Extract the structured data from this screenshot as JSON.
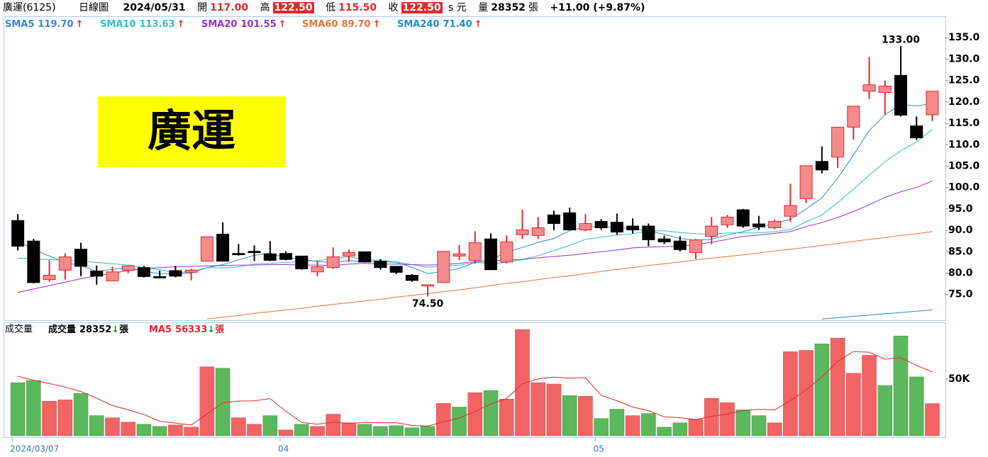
{
  "header": {
    "name": "廣運(6125)",
    "period": "日線圖",
    "date": "2024/05/31",
    "open_label": "開",
    "open": "117.00",
    "high_label": "高",
    "high": "122.50",
    "low_label": "低",
    "low": "115.50",
    "close_label": "收",
    "close": "122.50",
    "currency": "s 元",
    "volume_label": "量",
    "volume": "28352",
    "volume_unit": "張",
    "change": "+11.00 (+9.87%)"
  },
  "chart_data": [
    {
      "type": "candlestick",
      "overlay_label": "廣運",
      "high_label": "133.00",
      "low_label": "74.50",
      "ylim": [
        69,
        140
      ],
      "yticks": [
        {
          "value": 75,
          "label": "75.0"
        },
        {
          "value": 80,
          "label": "80.0"
        },
        {
          "value": 85,
          "label": "85.0"
        },
        {
          "value": 90,
          "label": "90.0"
        },
        {
          "value": 95,
          "label": "95.0"
        },
        {
          "value": 100,
          "label": "100.0"
        },
        {
          "value": 105,
          "label": "105.0"
        },
        {
          "value": 110,
          "label": "110.0"
        },
        {
          "value": 115,
          "label": "115.0"
        },
        {
          "value": 120,
          "label": "120.0"
        },
        {
          "value": 125,
          "label": "125.0"
        },
        {
          "value": 130,
          "label": "130.0"
        },
        {
          "value": 135,
          "label": "135.0"
        }
      ],
      "up_color": "#e8262a",
      "up_fill": "#f58a8a",
      "down_color": "#000000",
      "open": [
        92.3,
        87.5,
        78.5,
        80.7,
        85.6,
        80.5,
        78.2,
        80.7,
        81.3,
        79.2,
        80.6,
        80.2,
        82.8,
        89.1,
        84.6,
        85.1,
        84.5,
        84.6,
        84.0,
        80.3,
        81.3,
        84.0,
        85.0,
        82.8,
        81.6,
        79.5,
        77.0,
        77.8,
        84.0,
        83.0,
        88.0,
        82.6,
        89.0,
        88.8,
        93.6,
        94.1,
        90.1,
        92.1,
        91.9,
        91.0,
        91.0,
        88.0,
        87.5,
        84.8,
        88.6,
        91.3,
        94.8,
        91.5,
        90.6,
        93.3,
        97.4,
        106.1,
        107.1,
        114.1,
        122.5,
        122.2,
        126.2,
        114.4,
        117.0
      ],
      "high": [
        93.8,
        88.0,
        83.0,
        84.6,
        87.1,
        81.8,
        81.5,
        81.8,
        81.7,
        80.6,
        81.7,
        81.0,
        88.5,
        91.9,
        86.8,
        86.5,
        87.5,
        85.1,
        84.0,
        82.8,
        86.0,
        85.5,
        85.0,
        83.3,
        81.6,
        79.8,
        77.3,
        85.1,
        86.6,
        89.8,
        89.3,
        88.8,
        94.8,
        93.1,
        94.6,
        95.3,
        93.8,
        92.6,
        93.9,
        92.8,
        91.6,
        88.8,
        88.6,
        88.0,
        93.1,
        93.6,
        95.0,
        93.4,
        92.5,
        100.9,
        105.1,
        109.6,
        114.1,
        119.0,
        130.5,
        125.0,
        133.0,
        116.6,
        122.5
      ],
      "low": [
        85.3,
        77.6,
        78.0,
        78.5,
        79.3,
        77.3,
        78.2,
        80.0,
        79.0,
        78.8,
        79.0,
        78.3,
        82.8,
        82.8,
        84.1,
        82.8,
        82.8,
        83.0,
        80.8,
        79.3,
        81.0,
        82.6,
        82.5,
        80.8,
        79.8,
        78.0,
        74.5,
        77.8,
        83.0,
        82.2,
        80.8,
        82.3,
        88.0,
        88.0,
        90.0,
        90.0,
        89.8,
        90.1,
        89.0,
        89.3,
        86.3,
        86.8,
        85.1,
        83.3,
        86.8,
        90.6,
        90.6,
        90.1,
        90.3,
        92.0,
        96.4,
        103.3,
        104.6,
        111.2,
        120.7,
        117.0,
        116.6,
        111.1,
        115.5
      ],
      "close": [
        86.3,
        77.8,
        79.5,
        83.8,
        81.6,
        79.3,
        80.3,
        81.7,
        79.2,
        78.9,
        79.3,
        80.7,
        88.5,
        82.8,
        84.3,
        84.8,
        83.0,
        83.2,
        81.0,
        81.5,
        83.8,
        84.8,
        82.6,
        81.3,
        80.2,
        78.3,
        77.3,
        85.1,
        84.5,
        87.1,
        80.8,
        87.3,
        90.1,
        90.6,
        91.6,
        90.1,
        91.6,
        90.6,
        89.6,
        90.1,
        87.8,
        87.3,
        85.5,
        87.8,
        91.0,
        93.1,
        91.0,
        90.8,
        92.1,
        95.8,
        105.1,
        104.1,
        114.1,
        119.0,
        124.0,
        123.7,
        116.9,
        111.6,
        122.5
      ],
      "series": [
        {
          "name": "SMA5",
          "color": "#3a87d6",
          "value_label": "119.70",
          "trend": "↑",
          "values": [
            87.6,
            85.5,
            84.0,
            82.5,
            81.8,
            80.4,
            80.9,
            81.3,
            80.4,
            79.9,
            79.9,
            80.0,
            81.3,
            82.0,
            83.1,
            84.2,
            84.7,
            83.6,
            83.3,
            82.7,
            82.5,
            82.9,
            82.7,
            82.8,
            82.5,
            81.4,
            79.9,
            80.4,
            81.1,
            82.5,
            83.0,
            85.0,
            86.0,
            87.2,
            88.1,
            89.9,
            90.8,
            90.9,
            90.7,
            90.4,
            89.9,
            89.1,
            88.1,
            87.7,
            87.9,
            88.9,
            89.7,
            90.7,
            91.6,
            92.6,
            95.0,
            97.6,
            102.2,
            107.6,
            113.3,
            117.0,
            119.5,
            119.0,
            119.7
          ]
        },
        {
          "name": "SMA10",
          "color": "#2cc3c3",
          "value_label": "113.63",
          "trend": "↑",
          "values": [
            83.5,
            83.4,
            83.2,
            83.0,
            82.8,
            82.5,
            82.2,
            81.9,
            81.3,
            80.8,
            80.1,
            80.4,
            81.3,
            81.2,
            81.5,
            82.1,
            82.3,
            82.5,
            82.7,
            82.9,
            83.4,
            83.8,
            83.2,
            83.0,
            82.6,
            82.0,
            81.4,
            81.6,
            81.9,
            82.5,
            82.2,
            82.5,
            83.2,
            84.1,
            85.3,
            86.5,
            87.9,
            88.4,
            88.9,
            89.2,
            89.9,
            89.9,
            89.5,
            89.2,
            89.1,
            89.4,
            89.4,
            89.4,
            89.7,
            90.2,
            92.0,
            93.6,
            96.5,
            99.6,
            102.9,
            106.0,
            108.6,
            110.6,
            113.63
          ]
        },
        {
          "name": "SMA20",
          "color": "#9a2fd0",
          "value_label": "101.55",
          "trend": "↑",
          "values": [
            75.5,
            76.3,
            77.1,
            77.9,
            78.7,
            79.4,
            80.0,
            80.6,
            81.0,
            81.3,
            81.5,
            81.6,
            81.7,
            81.8,
            81.9,
            81.9,
            82.0,
            82.0,
            81.9,
            81.9,
            81.8,
            82.1,
            82.3,
            82.1,
            82.1,
            82.0,
            81.9,
            82.0,
            82.3,
            82.7,
            82.8,
            83.1,
            83.2,
            83.6,
            83.9,
            84.2,
            84.6,
            85.0,
            85.4,
            85.9,
            86.1,
            86.2,
            86.3,
            86.7,
            87.2,
            87.9,
            88.6,
            88.9,
            89.3,
            89.7,
            90.9,
            91.8,
            93.0,
            94.4,
            96.0,
            97.7,
            99.0,
            100.0,
            101.55
          ]
        },
        {
          "name": "SMA60",
          "color": "#e8743b",
          "value_label": "89.70",
          "trend": "↑",
          "values": [
            null,
            null,
            null,
            null,
            null,
            null,
            null,
            null,
            null,
            null,
            null,
            null,
            69.3,
            69.7,
            70.1,
            70.6,
            71.0,
            71.4,
            71.8,
            72.3,
            72.7,
            73.1,
            73.5,
            73.9,
            74.4,
            74.8,
            75.2,
            75.7,
            76.1,
            76.6,
            77.1,
            77.6,
            78.0,
            78.5,
            79.0,
            79.4,
            79.9,
            80.4,
            80.9,
            81.3,
            81.8,
            82.2,
            82.6,
            83.1,
            83.5,
            83.9,
            84.3,
            84.7,
            85.2,
            85.6,
            86.0,
            86.5,
            86.9,
            87.4,
            87.9,
            88.3,
            88.8,
            89.2,
            89.7
          ]
        },
        {
          "name": "SMA240",
          "color": "#1e8fc8",
          "value_label": "71.40",
          "trend": "↑",
          "values": [
            null,
            null,
            null,
            null,
            null,
            null,
            null,
            null,
            null,
            null,
            null,
            null,
            null,
            null,
            null,
            null,
            null,
            null,
            null,
            null,
            null,
            null,
            null,
            null,
            null,
            null,
            null,
            null,
            null,
            null,
            null,
            null,
            null,
            null,
            null,
            null,
            null,
            null,
            null,
            null,
            null,
            null,
            null,
            null,
            null,
            null,
            null,
            null,
            null,
            null,
            null,
            69.3,
            69.6,
            69.9,
            70.2,
            70.5,
            70.8,
            71.1,
            71.4
          ]
        }
      ]
    },
    {
      "type": "bar",
      "title": "成交量",
      "name": "成交量",
      "value_label": "28352",
      "trend": "↓",
      "unit": "張",
      "up_color": "#f26464",
      "down_color": "#5cb85c",
      "categories": [
        "2024/03/07",
        null,
        null,
        null,
        null,
        null,
        null,
        null,
        null,
        null,
        null,
        null,
        null,
        null,
        null,
        null,
        null,
        "04",
        null,
        null,
        null,
        null,
        null,
        null,
        null,
        null,
        null,
        null,
        null,
        null,
        null,
        null,
        null,
        null,
        null,
        null,
        null,
        "05",
        null,
        null,
        null,
        null,
        null,
        null,
        null,
        null,
        null,
        null,
        null,
        null,
        null,
        null,
        null,
        null,
        null,
        null,
        null,
        null,
        null
      ],
      "ylim": [
        0,
        100000
      ],
      "yticks": [
        {
          "value": 50000,
          "label": "50K"
        }
      ],
      "values": [
        46800,
        48700,
        30400,
        31600,
        37300,
        17700,
        15800,
        12000,
        10100,
        8200,
        9500,
        7600,
        60800,
        59500,
        15800,
        10100,
        17700,
        5100,
        10100,
        8200,
        19000,
        11400,
        10100,
        8200,
        8900,
        7000,
        8200,
        28500,
        25300,
        38000,
        39900,
        32300,
        93700,
        46800,
        45600,
        35400,
        34800,
        15200,
        23400,
        17700,
        19600,
        7600,
        11400,
        14600,
        32900,
        29100,
        22800,
        17700,
        11400,
        74100,
        75300,
        81000,
        86100,
        55100,
        70900,
        44300,
        88000,
        51900,
        28352
      ],
      "series": [
        {
          "name": "MA5",
          "color": "#e8262a",
          "value_label": "56333",
          "trend": "↓",
          "unit": "張",
          "values": [
            52500,
            49000,
            46000,
            43000,
            39000,
            33100,
            26600,
            22900,
            18600,
            12800,
            11100,
            9500,
            19200,
            29100,
            30600,
            30800,
            32800,
            21600,
            11800,
            10200,
            12000,
            10800,
            11800,
            11400,
            11500,
            9100,
            8500,
            12200,
            15600,
            21400,
            28000,
            32800,
            45800,
            50100,
            51700,
            50800,
            51300,
            35600,
            30900,
            25300,
            22100,
            16700,
            15900,
            14200,
            17200,
            19100,
            22200,
            23400,
            22800,
            31000,
            40300,
            51900,
            65600,
            74300,
            73700,
            67500,
            68900,
            62000,
            56333
          ]
        }
      ]
    }
  ]
}
